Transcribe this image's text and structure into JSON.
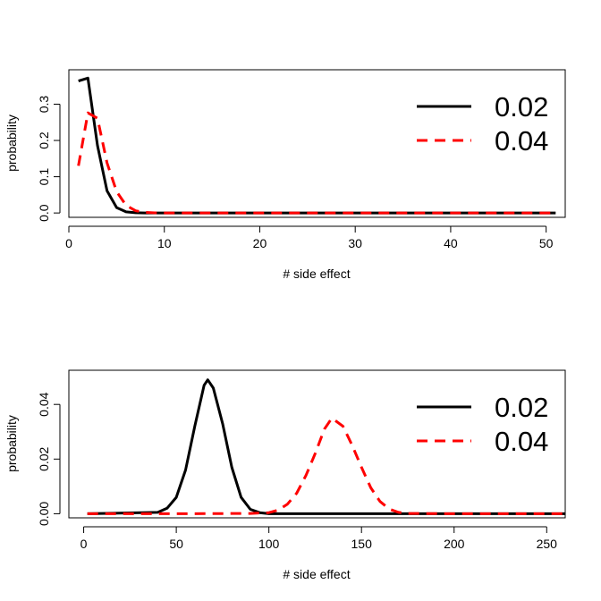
{
  "chart_data": [
    {
      "type": "line",
      "xlabel": "# side effect",
      "ylabel": "probability",
      "xlim": [
        0,
        52
      ],
      "ylim": [
        -0.012,
        0.395
      ],
      "xticks": [
        0,
        10,
        20,
        30,
        40,
        50
      ],
      "yticks": [
        0.0,
        0.1,
        0.2,
        0.3
      ],
      "ytick_labels": [
        "0.0",
        "0.1",
        "0.2",
        "0.3"
      ],
      "legend": {
        "position": "top-right",
        "entries": [
          "0.02",
          "0.04"
        ]
      },
      "series": [
        {
          "name": "0.02",
          "color": "#000000",
          "dash": "solid",
          "x": [
            1,
            2,
            3,
            4,
            5,
            6,
            7,
            8,
            9,
            10,
            20,
            30,
            40,
            51
          ],
          "y": [
            0.364,
            0.372,
            0.186,
            0.061,
            0.015,
            0.003,
            0.0005,
            0.0001,
            0,
            0,
            0,
            0,
            0,
            0
          ]
        },
        {
          "name": "0.04",
          "color": "#ff0000",
          "dash": "dashed",
          "x": [
            1,
            2,
            3,
            4,
            5,
            6,
            7,
            8,
            9,
            10,
            20,
            30,
            40,
            51
          ],
          "y": [
            0.13,
            0.276,
            0.261,
            0.138,
            0.059,
            0.021,
            0.006,
            0.0015,
            0.0004,
            0,
            0,
            0,
            0,
            0
          ]
        }
      ]
    },
    {
      "type": "line",
      "xlabel": "# side effect",
      "ylabel": "probability",
      "xlim": [
        -8,
        260
      ],
      "ylim": [
        -0.0015,
        0.0525
      ],
      "xticks": [
        0,
        50,
        100,
        150,
        200,
        250
      ],
      "yticks": [
        0.0,
        0.02,
        0.04
      ],
      "ytick_labels": [
        "0.00",
        "0.02",
        "0.04"
      ],
      "legend": {
        "position": "top-right",
        "entries": [
          "0.02",
          "0.04"
        ]
      },
      "series": [
        {
          "name": "0.02",
          "color": "#000000",
          "dash": "solid",
          "x": [
            2,
            40,
            45,
            50,
            55,
            60,
            65,
            67,
            70,
            75,
            80,
            85,
            90,
            95,
            100,
            150,
            200,
            260
          ],
          "y": [
            0,
            0.0005,
            0.002,
            0.006,
            0.016,
            0.032,
            0.047,
            0.049,
            0.046,
            0.033,
            0.017,
            0.006,
            0.0016,
            0.0004,
            0,
            0,
            0,
            0
          ]
        },
        {
          "name": "0.04",
          "color": "#ff0000",
          "dash": "dashed",
          "x": [
            2,
            50,
            90,
            100,
            105,
            110,
            115,
            120,
            125,
            130,
            134,
            140,
            145,
            150,
            155,
            160,
            165,
            170,
            175,
            200,
            260
          ],
          "y": [
            0,
            0,
            0.0001,
            0.0004,
            0.0013,
            0.0035,
            0.0075,
            0.014,
            0.022,
            0.031,
            0.035,
            0.032,
            0.025,
            0.017,
            0.0095,
            0.0045,
            0.0017,
            0.0005,
            0.0001,
            0,
            0
          ]
        }
      ]
    }
  ]
}
